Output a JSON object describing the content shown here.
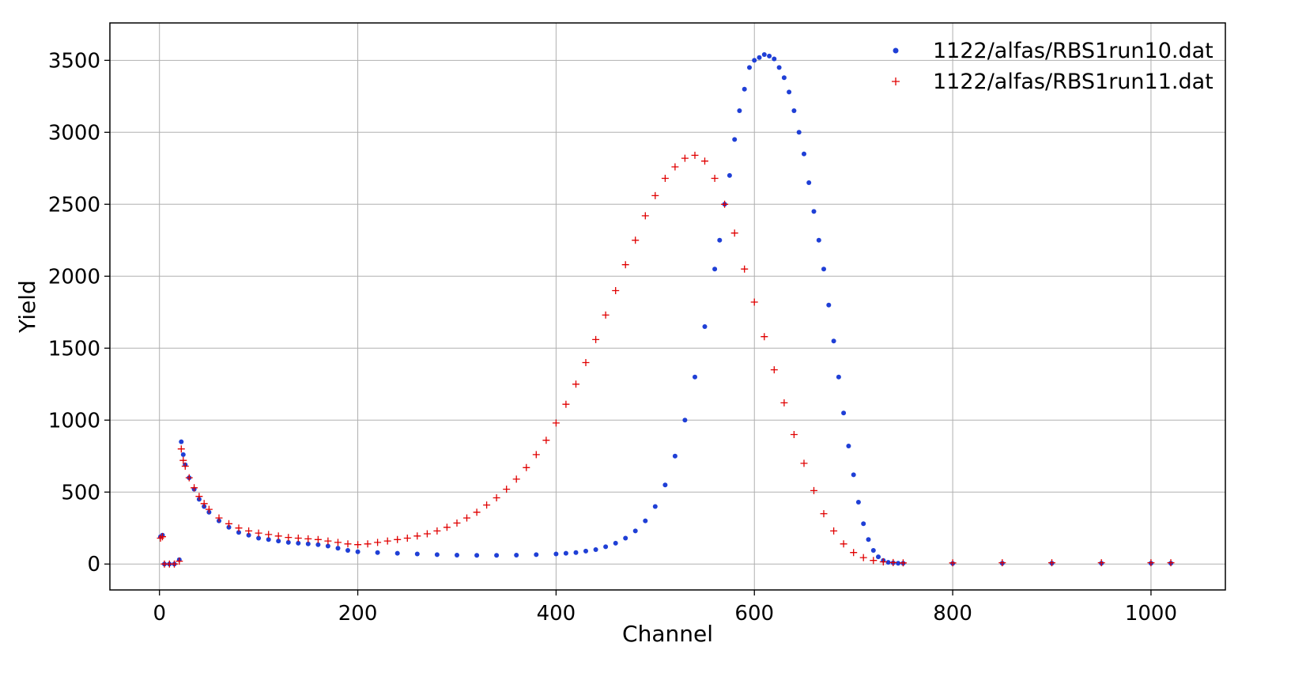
{
  "chart_data": {
    "type": "scatter",
    "title": "",
    "xlabel": "Channel",
    "ylabel": "Yield",
    "xlim": [
      -50,
      1075
    ],
    "ylim": [
      -180,
      3760
    ],
    "xticks": [
      0,
      200,
      400,
      600,
      800,
      1000
    ],
    "yticks": [
      0,
      500,
      1000,
      1500,
      2000,
      2500,
      3000,
      3500
    ],
    "grid": true,
    "legend_position": "top-right",
    "series": [
      {
        "name": "1122/alfas/RBS1run10.dat",
        "color": "#1f3fd6",
        "marker": "dot",
        "x": [
          1,
          3,
          5,
          10,
          15,
          20,
          22,
          24,
          26,
          30,
          35,
          40,
          45,
          50,
          60,
          70,
          80,
          90,
          100,
          110,
          120,
          130,
          140,
          150,
          160,
          170,
          180,
          190,
          200,
          220,
          240,
          260,
          280,
          300,
          320,
          340,
          360,
          380,
          400,
          410,
          420,
          430,
          440,
          450,
          460,
          470,
          480,
          490,
          500,
          510,
          520,
          530,
          540,
          550,
          560,
          565,
          570,
          575,
          580,
          585,
          590,
          595,
          600,
          605,
          610,
          615,
          620,
          625,
          630,
          635,
          640,
          645,
          650,
          655,
          660,
          665,
          670,
          675,
          680,
          685,
          690,
          695,
          700,
          705,
          710,
          715,
          720,
          725,
          730,
          735,
          740,
          745,
          750,
          800,
          850,
          900,
          950,
          1000,
          1020
        ],
        "y": [
          190,
          200,
          0,
          0,
          0,
          30,
          850,
          760,
          690,
          600,
          520,
          450,
          400,
          360,
          300,
          255,
          220,
          200,
          180,
          170,
          160,
          150,
          145,
          140,
          135,
          125,
          110,
          95,
          85,
          80,
          75,
          70,
          65,
          62,
          60,
          60,
          62,
          65,
          70,
          75,
          80,
          90,
          100,
          120,
          145,
          180,
          230,
          300,
          400,
          550,
          750,
          1000,
          1300,
          1650,
          2050,
          2250,
          2500,
          2700,
          2950,
          3150,
          3300,
          3450,
          3500,
          3520,
          3540,
          3530,
          3510,
          3450,
          3380,
          3280,
          3150,
          3000,
          2850,
          2650,
          2450,
          2250,
          2050,
          1800,
          1550,
          1300,
          1050,
          820,
          620,
          430,
          280,
          170,
          95,
          50,
          25,
          12,
          8,
          6,
          5,
          4,
          5,
          5,
          6,
          6,
          6
        ]
      },
      {
        "name": "1122/alfas/RBS1run11.dat",
        "color": "#e00000",
        "marker": "plus",
        "x": [
          1,
          3,
          5,
          10,
          15,
          20,
          22,
          24,
          26,
          30,
          35,
          40,
          45,
          50,
          60,
          70,
          80,
          90,
          100,
          110,
          120,
          130,
          140,
          150,
          160,
          170,
          180,
          190,
          200,
          210,
          220,
          230,
          240,
          250,
          260,
          270,
          280,
          290,
          300,
          310,
          320,
          330,
          340,
          350,
          360,
          370,
          380,
          390,
          400,
          410,
          420,
          430,
          440,
          450,
          460,
          470,
          480,
          490,
          500,
          510,
          520,
          530,
          540,
          550,
          560,
          570,
          580,
          590,
          600,
          610,
          620,
          630,
          640,
          650,
          660,
          670,
          680,
          690,
          700,
          710,
          720,
          730,
          740,
          750,
          800,
          850,
          900,
          950,
          1000,
          1020
        ],
        "y": [
          180,
          190,
          0,
          0,
          0,
          20,
          800,
          720,
          680,
          600,
          530,
          470,
          420,
          380,
          320,
          280,
          250,
          230,
          215,
          205,
          195,
          185,
          180,
          175,
          170,
          160,
          150,
          140,
          135,
          140,
          150,
          160,
          170,
          180,
          195,
          210,
          230,
          255,
          285,
          320,
          360,
          410,
          460,
          520,
          590,
          670,
          760,
          860,
          980,
          1110,
          1250,
          1400,
          1560,
          1730,
          1900,
          2080,
          2250,
          2420,
          2560,
          2680,
          2760,
          2820,
          2840,
          2800,
          2680,
          2500,
          2300,
          2050,
          1820,
          1580,
          1350,
          1120,
          900,
          700,
          510,
          350,
          230,
          140,
          80,
          45,
          25,
          15,
          10,
          8,
          8,
          9,
          9,
          9,
          9,
          9
        ]
      }
    ]
  }
}
